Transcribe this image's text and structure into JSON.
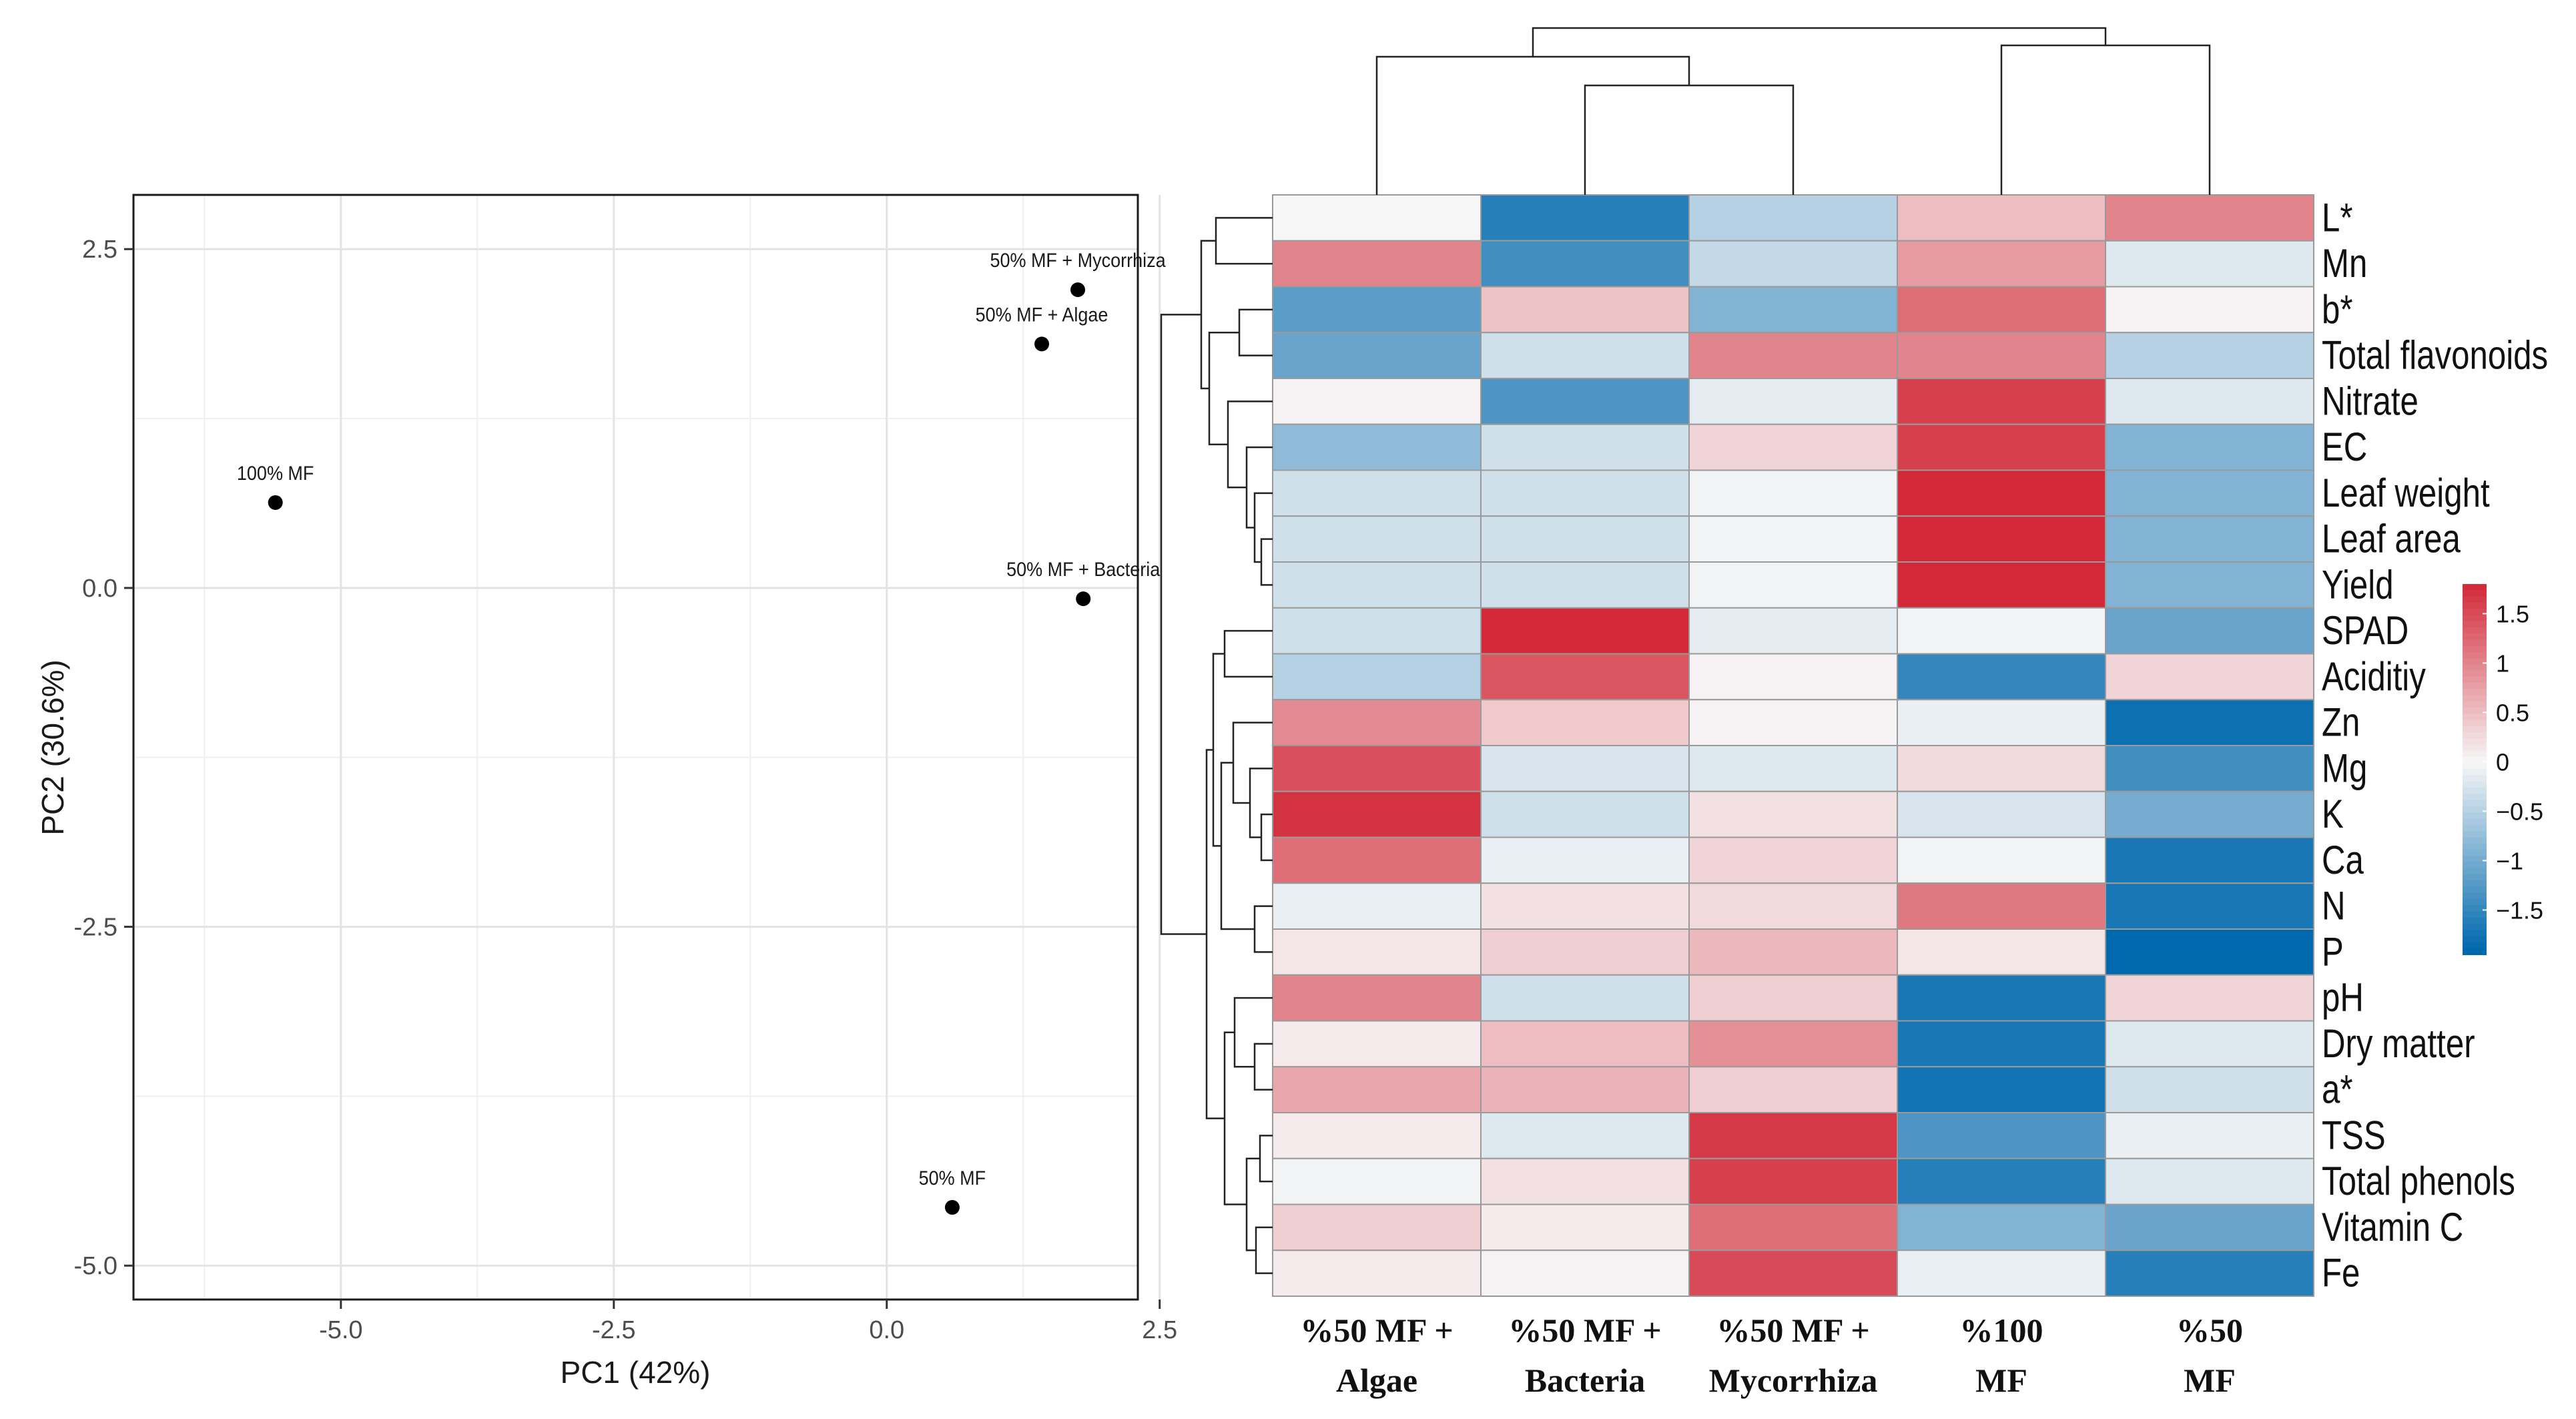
{
  "chart_data": [
    {
      "type": "scatter",
      "xlabel": "PC1 (42%)",
      "ylabel": "PC2 (30.6%)",
      "xlim": [
        -6.9,
        2.3
      ],
      "ylim": [
        -5.25,
        2.9
      ],
      "xticks": [
        -5.0,
        -2.5,
        0.0,
        2.5
      ],
      "xtick_labels": [
        "-5.0",
        "-2.5",
        "0.0",
        "2.5"
      ],
      "yticks": [
        2.5,
        0.0,
        -2.5,
        -5.0
      ],
      "ytick_labels": [
        "2.5",
        "0.0",
        "-2.5",
        "-5.0"
      ],
      "grid": true,
      "points": [
        {
          "label": "100% MF",
          "x": -5.6,
          "y": 0.63
        },
        {
          "label": "50% MF + Mycorrhiza",
          "x": 1.75,
          "y": 2.2
        },
        {
          "label": "50%  MF + Algae",
          "x": 1.42,
          "y": 1.8
        },
        {
          "label": "50% MF + Bacteria",
          "x": 1.8,
          "y": -0.08
        },
        {
          "label": "50%  MF",
          "x": 0.6,
          "y": -4.57
        }
      ]
    },
    {
      "type": "heatmap",
      "columns": [
        {
          "line1": "%50 MF +",
          "line2": "Algae"
        },
        {
          "line1": "%50 MF +",
          "line2": "Bacteria"
        },
        {
          "line1": "%50 MF +",
          "line2": "Mycorrhiza"
        },
        {
          "line1": "%100",
          "line2": "MF"
        },
        {
          "line1": "%50",
          "line2": "MF"
        }
      ],
      "rows": [
        "L*",
        "Mn",
        "b*",
        "Total flavonoids",
        "Nitrate",
        "EC",
        "Leaf weight",
        "Leaf area",
        "Yield",
        "SPAD",
        "Aciditiy",
        "Zn",
        "Mg",
        "K",
        "Ca",
        "N",
        "P",
        "pH",
        "Dry matter",
        "a*",
        "TSS",
        "Total phenols",
        "Vitamin C",
        "Fe"
      ],
      "values": [
        [
          0.0,
          -1.6,
          -0.5,
          0.5,
          1.0
        ],
        [
          1.0,
          -1.4,
          -0.4,
          0.8,
          -0.2
        ],
        [
          -1.2,
          0.45,
          -0.9,
          1.2,
          0.05
        ],
        [
          -1.1,
          -0.3,
          1.0,
          1.0,
          -0.5
        ],
        [
          0.05,
          -1.3,
          -0.15,
          1.6,
          -0.2
        ],
        [
          -0.8,
          -0.3,
          0.3,
          1.6,
          -0.9
        ],
        [
          -0.3,
          -0.3,
          -0.05,
          1.8,
          -0.9
        ],
        [
          -0.3,
          -0.3,
          -0.05,
          1.8,
          -0.9
        ],
        [
          -0.3,
          -0.3,
          -0.05,
          1.8,
          -0.9
        ],
        [
          -0.3,
          1.8,
          -0.15,
          -0.05,
          -1.1
        ],
        [
          -0.5,
          1.4,
          0.05,
          -1.5,
          0.3
        ],
        [
          0.95,
          0.4,
          0.05,
          -0.1,
          -1.8
        ],
        [
          1.45,
          -0.25,
          -0.2,
          0.25,
          -1.4
        ],
        [
          1.7,
          -0.3,
          0.2,
          -0.25,
          -1.0
        ],
        [
          1.2,
          -0.1,
          0.3,
          -0.05,
          -1.7
        ],
        [
          -0.1,
          0.2,
          0.25,
          1.1,
          -1.7
        ],
        [
          0.15,
          0.35,
          0.55,
          0.15,
          -1.95
        ],
        [
          1.0,
          -0.3,
          0.35,
          -1.7,
          0.3
        ],
        [
          0.1,
          0.5,
          0.9,
          -1.7,
          -0.2
        ],
        [
          0.7,
          0.6,
          0.35,
          -1.75,
          -0.3
        ],
        [
          0.1,
          -0.2,
          1.65,
          -1.3,
          -0.1
        ],
        [
          -0.05,
          0.2,
          1.6,
          -1.6,
          -0.2
        ],
        [
          0.35,
          0.1,
          1.2,
          -0.9,
          -1.1
        ],
        [
          0.1,
          0.05,
          1.5,
          -0.1,
          -1.6
        ]
      ],
      "color_scale": {
        "ticks": [
          1.5,
          1,
          0.5,
          0,
          -0.5,
          -1,
          -1.5
        ],
        "tick_labels": [
          "1.5",
          "1",
          "0.5",
          "0",
          "−0.5",
          "−1",
          "−1.5"
        ],
        "low": "#0068ad",
        "mid": "#f7f7f7",
        "high": "#d01c2c"
      },
      "column_dendrogram": "((Algae,(Bacteria,Mycorrhiza)),(100 MF,50 MF))",
      "row_dendrogram": "(((L*,Mn),((b*,Total flavonoids),(Nitrate,(EC,(Leaf weight,(Leaf area,Yield)))))),(((SPAD,Aciditiy),((Zn,(Mg,(K,Ca))),(N,P))),((pH,(Dry matter,a*)),((TSS,Total phenols),(Vitamin C,Fe)))))"
    }
  ]
}
